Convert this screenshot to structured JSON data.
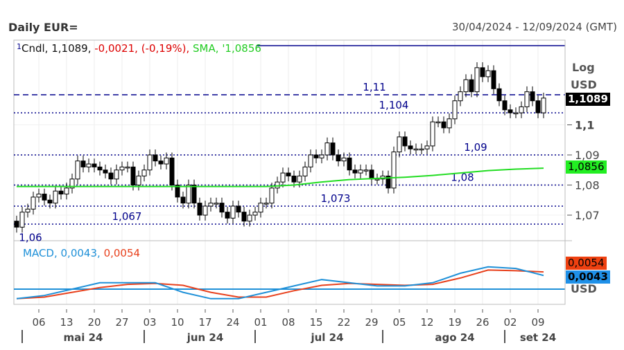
{
  "header": {
    "title": "Daily EUR=",
    "date_range": "30/04/2024 - 12/09/2024 (GMT)"
  },
  "legend": {
    "marker": "1",
    "series": "Cndl,",
    "last": "1,1089,",
    "change": "-0,0021, (-0,19%),",
    "sma_label": "SMA,",
    "sma_value": "'1,0856"
  },
  "macd_legend": {
    "label": "MACD,",
    "macd": "0,0043,",
    "signal": "0,0054"
  },
  "axis": {
    "scale": "Log",
    "currency": "USD",
    "macd_currency": "USD",
    "price_ticks": [
      {
        "v": 1.1,
        "t": "1,1",
        "bold": true
      },
      {
        "v": 1.09,
        "t": "1,09"
      },
      {
        "v": 1.08,
        "t": "1,08"
      },
      {
        "v": 1.07,
        "t": "1,07"
      }
    ],
    "last_tag": "1,1089",
    "sma_tag": "1,0856",
    "signal_tag": "0,0054",
    "macd_tag": "0,0043"
  },
  "colors": {
    "candle": "#000000",
    "sma": "#22dd22",
    "macd": "#1e90d8",
    "signal": "#e8401c",
    "levels": "#00008b"
  },
  "chart_data": {
    "type": "candlestick",
    "title": "Daily EUR=",
    "ylabel": "USD (Log)",
    "ylim": [
      1.062,
      1.122
    ],
    "levels": [
      {
        "v": 1.11,
        "t": "1,11",
        "style": "dashed"
      },
      {
        "v": 1.104,
        "t": "1,104"
      },
      {
        "v": 1.09,
        "t": "1,09"
      },
      {
        "v": 1.08,
        "t": "1,08"
      },
      {
        "v": 1.073,
        "t": "1,073"
      },
      {
        "v": 1.067,
        "t": "1,067"
      },
      {
        "v": 1.06,
        "t": "1,06"
      }
    ],
    "closes": [
      1.066,
      1.071,
      1.072,
      1.076,
      1.077,
      1.075,
      1.074,
      1.078,
      1.077,
      1.079,
      1.082,
      1.088,
      1.086,
      1.087,
      1.086,
      1.085,
      1.084,
      1.082,
      1.085,
      1.086,
      1.086,
      1.08,
      1.083,
      1.085,
      1.09,
      1.088,
      1.087,
      1.089,
      1.08,
      1.076,
      1.074,
      1.08,
      1.074,
      1.07,
      1.073,
      1.074,
      1.074,
      1.071,
      1.069,
      1.073,
      1.071,
      1.068,
      1.07,
      1.071,
      1.074,
      1.074,
      1.079,
      1.081,
      1.084,
      1.083,
      1.081,
      1.083,
      1.086,
      1.09,
      1.089,
      1.09,
      1.094,
      1.09,
      1.088,
      1.089,
      1.085,
      1.084,
      1.085,
      1.085,
      1.082,
      1.082,
      1.083,
      1.079,
      1.091,
      1.096,
      1.093,
      1.092,
      1.092,
      1.092,
      1.093,
      1.101,
      1.101,
      1.099,
      1.102,
      1.108,
      1.111,
      1.115,
      1.111,
      1.119,
      1.116,
      1.118,
      1.112,
      1.108,
      1.105,
      1.104,
      1.104,
      1.106,
      1.111,
      1.108,
      1.104,
      1.1089
    ],
    "sma_weekly": [
      1.0795,
      1.0795,
      1.0795,
      1.0795,
      1.0795,
      1.0795,
      1.0795,
      1.0795,
      1.0795,
      1.0795,
      1.08,
      1.081,
      1.0818,
      1.0822,
      1.0826,
      1.0832,
      1.084,
      1.0848,
      1.0853,
      1.0856
    ],
    "macd_weekly": [
      -0.003,
      -0.002,
      0.0,
      0.002,
      0.002,
      0.002,
      -0.001,
      -0.003,
      -0.003,
      -0.001,
      0.001,
      0.003,
      0.002,
      0.001,
      0.001,
      0.002,
      0.005,
      0.007,
      0.0065,
      0.0043
    ],
    "signal_weekly": [
      -0.003,
      -0.0025,
      -0.001,
      0.0005,
      0.0015,
      0.0018,
      0.0012,
      -0.001,
      -0.0025,
      -0.0025,
      -0.0005,
      0.0012,
      0.0018,
      0.0015,
      0.0012,
      0.0015,
      0.0035,
      0.006,
      0.0058,
      0.0054
    ],
    "x_ticks": [
      {
        "i": 4,
        "t": "06"
      },
      {
        "i": 9,
        "t": "13"
      },
      {
        "i": 14,
        "t": "20"
      },
      {
        "i": 19,
        "t": "27"
      },
      {
        "i": 24,
        "t": "03"
      },
      {
        "i": 29,
        "t": "10"
      },
      {
        "i": 34,
        "t": "17"
      },
      {
        "i": 39,
        "t": "24"
      },
      {
        "i": 44,
        "t": "01"
      },
      {
        "i": 49,
        "t": "08"
      },
      {
        "i": 54,
        "t": "15"
      },
      {
        "i": 59,
        "t": "22"
      },
      {
        "i": 64,
        "t": "29"
      },
      {
        "i": 69,
        "t": "05"
      },
      {
        "i": 74,
        "t": "12"
      },
      {
        "i": 79,
        "t": "19"
      },
      {
        "i": 84,
        "t": "26"
      },
      {
        "i": 89,
        "t": "02"
      },
      {
        "i": 94,
        "t": "09"
      }
    ],
    "months": [
      {
        "t": "mai 24",
        "s": 1,
        "c": 12
      },
      {
        "t": "jun 24",
        "s": 24,
        "c": 34
      },
      {
        "t": "jul 24",
        "s": 44,
        "c": 56
      },
      {
        "t": "ago 24",
        "s": 67,
        "c": 79
      },
      {
        "t": "set 24",
        "s": 89,
        "c": 94
      }
    ]
  }
}
